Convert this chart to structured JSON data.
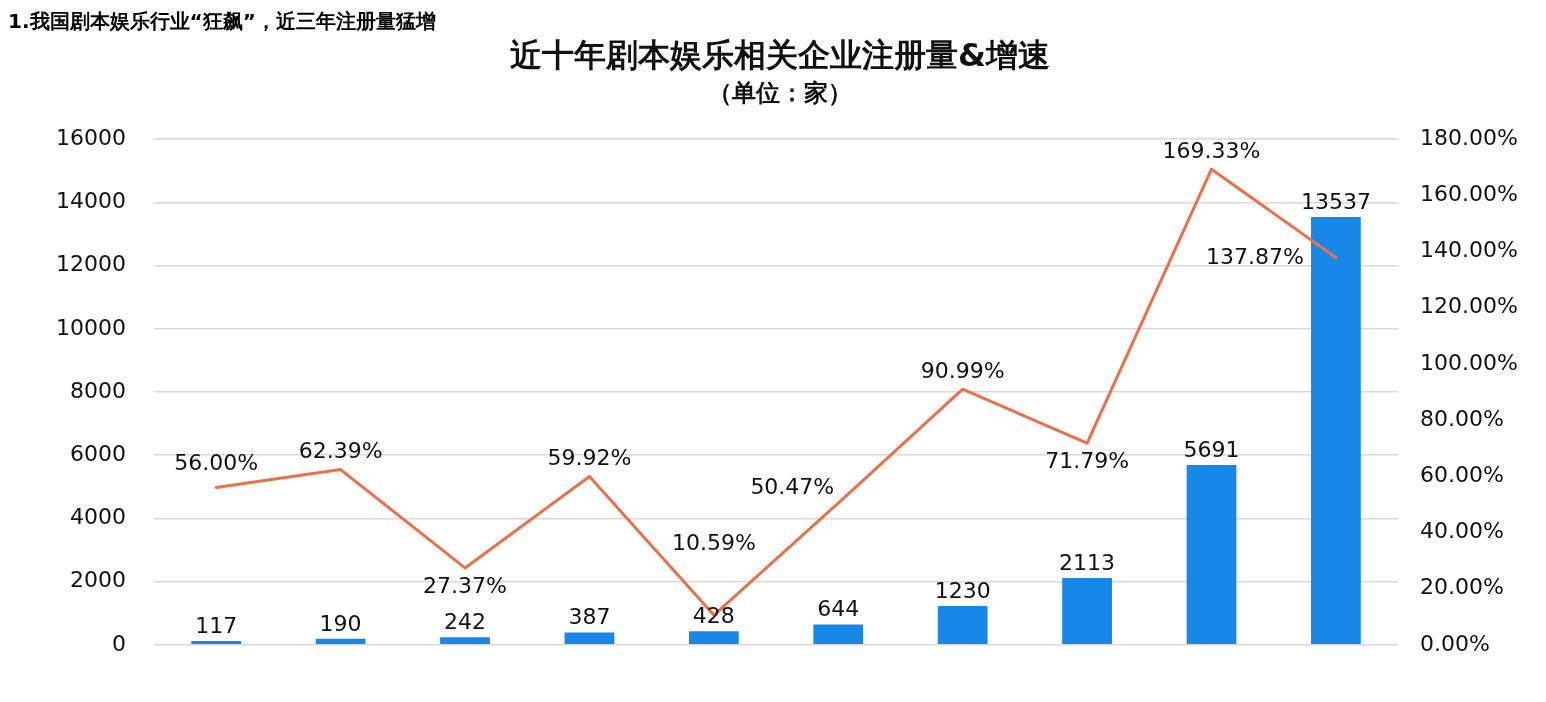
{
  "chart_data": {
    "type": "bar",
    "title": "近十年剧本娱乐相关企业注册量&增速",
    "subtitle": "（单位：家）",
    "annotations": [
      "1.我国剧本娱乐行业“狂飙”，近三年注册量猛增"
    ],
    "categories": [
      null,
      null,
      null,
      null,
      null,
      null,
      null,
      null,
      null,
      null
    ],
    "series": [
      {
        "color": "#1787e8",
        "values": [
          117,
          190,
          242,
          387,
          428,
          644,
          1230,
          2113,
          5691,
          13537
        ],
        "value_labels": [
          "117",
          "190",
          "242",
          "387",
          "428",
          "644",
          "1230",
          "2113",
          "5691",
          "13537"
        ]
      },
      {
        "type": "line",
        "axis": "y2",
        "color": "#ec7047",
        "values": [
          56.0,
          62.39,
          27.37,
          59.92,
          10.59,
          50.47,
          90.99,
          71.79,
          169.33,
          137.87
        ],
        "value_labels": [
          "56.00%",
          "62.39%",
          "27.37%",
          "59.92%",
          "10.59%",
          "50.47%",
          "90.99%",
          "71.79%",
          "169.33%",
          "137.87%"
        ]
      }
    ],
    "ylim": [
      0,
      16000
    ],
    "yticks": [
      0,
      2000,
      4000,
      6000,
      8000,
      10000,
      12000,
      14000,
      16000
    ],
    "y2lim": [
      0,
      180
    ],
    "y2ticks": [
      {
        "value": 0,
        "label": "0.00%"
      },
      {
        "value": 20,
        "label": "20.00%"
      },
      {
        "value": 40,
        "label": "40.00%"
      },
      {
        "value": 60,
        "label": "60.00%"
      },
      {
        "value": 80,
        "label": "80.00%"
      },
      {
        "value": 100,
        "label": "100.00%"
      },
      {
        "value": 120,
        "label": "120.00%"
      },
      {
        "value": 140,
        "label": "140.00%"
      },
      {
        "value": 160,
        "label": "160.00%"
      },
      {
        "value": 180,
        "label": "180.00%"
      }
    ],
    "grid": "y",
    "marker": "none",
    "line_style": "solid"
  }
}
